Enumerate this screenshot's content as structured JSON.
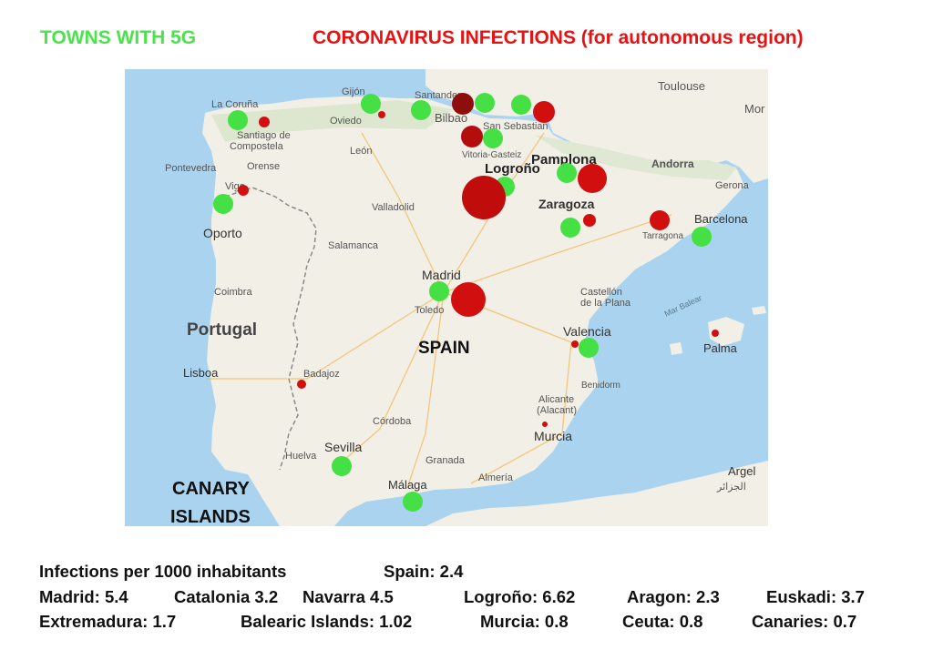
{
  "header": {
    "left_title": "TOWNS WITH 5G",
    "right_title": "CORONAVIRUS INFECTIONS (for autonomous region)"
  },
  "colors": {
    "towns_5g": "#44e044",
    "infections": "#d10f0f",
    "sea": "#a9d3ef",
    "land": "#f2efe6"
  },
  "map": {
    "labels": {
      "toulouse": "Toulouse",
      "mo": "Mor",
      "la_coruna": "La Coruña",
      "gijon": "Gijón",
      "oviedo": "Oviedo",
      "santander": "Santander",
      "bilbao": "Bilbao",
      "san_sebastian": "San Sebastian",
      "santiago": "Santiago de",
      "compostela": "Compostela",
      "leon": "León",
      "vitoria": "Vitoria-Gasteiz",
      "pamplona": "Pamplona",
      "logrono": "Logroño",
      "andorra": "Andorra",
      "pontevedra": "Pontevedra",
      "orense": "Orense",
      "vigo": "Vigo",
      "gerona": "Gerona",
      "zaragoza": "Zaragoza",
      "valladolid": "Valladolid",
      "barcelona": "Barcelona",
      "tarragona": "Tarragona",
      "oporto": "Oporto",
      "salamanca": "Salamanca",
      "madrid": "Madrid",
      "coimbra": "Coimbra",
      "castellon": "Castellón",
      "de_la_plana": "de la Plana",
      "toledo": "Toledo",
      "portugal": "Portugal",
      "spain": "SPAIN",
      "valencia": "Valencia",
      "mar_balear": "Mar Balear",
      "palma": "Palma",
      "lisboa": "Lisboa",
      "badajoz": "Badajoz",
      "benidorm": "Benidorm",
      "alicante": "Alicante",
      "alacant": "(Alacant)",
      "cordoba": "Córdoba",
      "murcia": "Murcia",
      "huelva": "Huelva",
      "sevilla": "Sevilla",
      "granada": "Granada",
      "almeria": "Almería",
      "argel": "Argel",
      "argel_ar": "الجزائر",
      "malaga": "Málaga",
      "canary": "CANARY",
      "islands": "ISLANDS"
    }
  },
  "stats": {
    "heading": "Infections per 1000 inhabitants",
    "spain": "Spain: 2.4",
    "madrid": "Madrid: 5.4",
    "catalonia": "Catalonia 3.2",
    "navarra": "Navarra 4.5",
    "logrono": "Logroño: 6.62",
    "aragon": "Aragon: 2.3",
    "euskadi": "Euskadi: 3.7",
    "extremadura": "Extremadura: 1.7",
    "balearic": "Balearic Islands: 1.02",
    "murcia": "Murcia: 0.8",
    "ceuta": "Ceuta: 0.8",
    "canaries": "Canaries: 0.7"
  }
}
